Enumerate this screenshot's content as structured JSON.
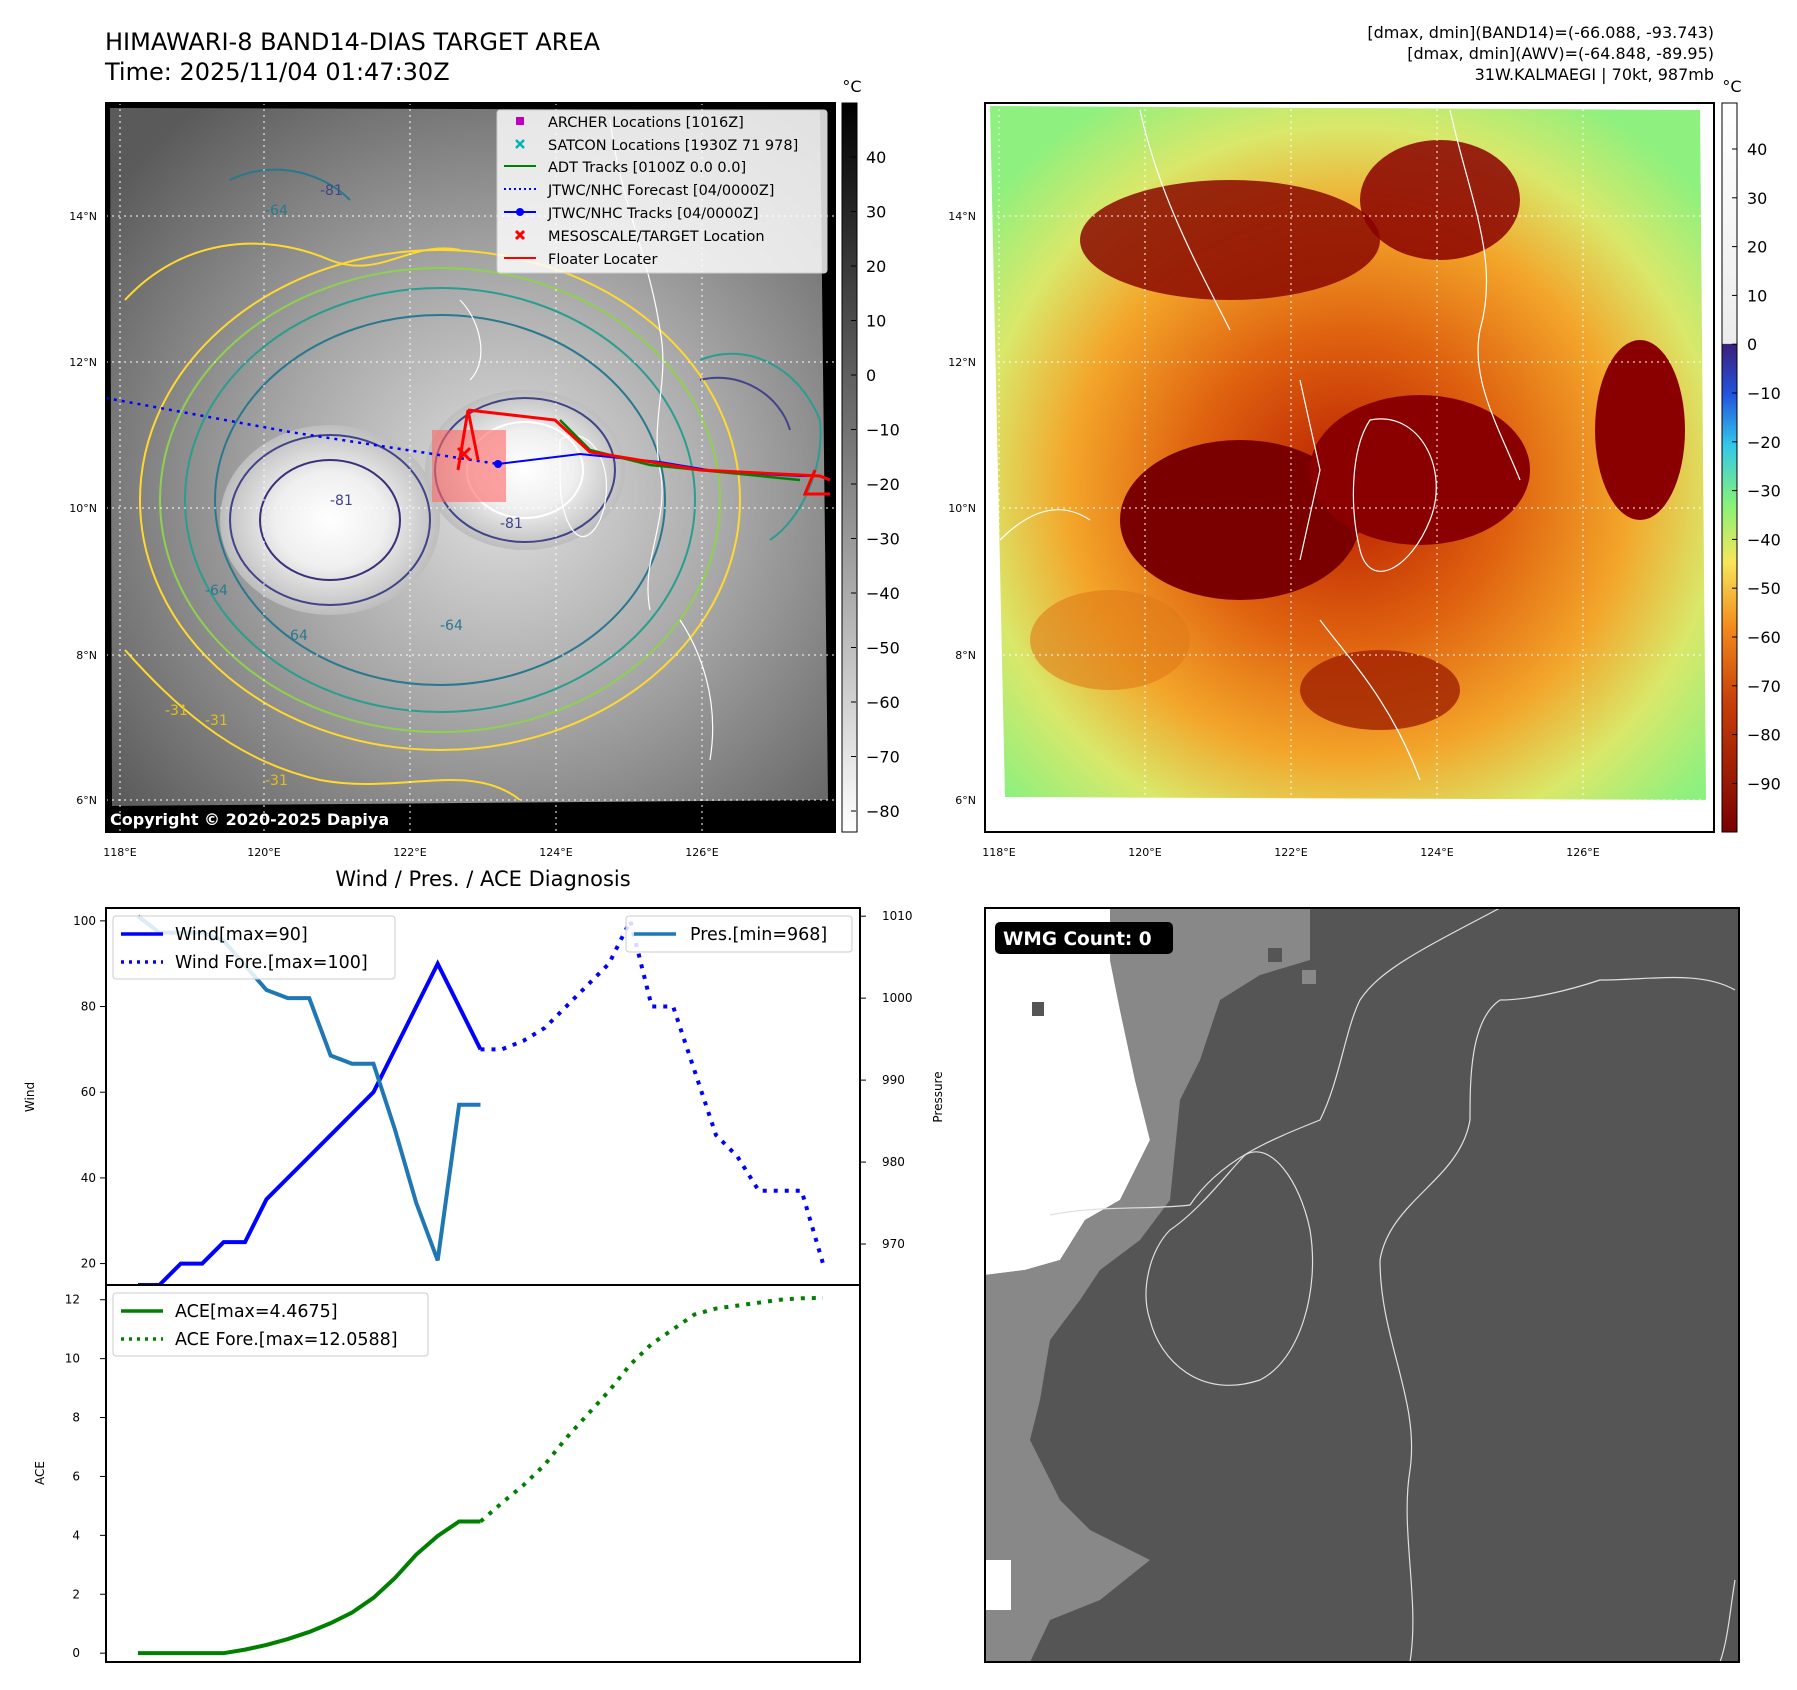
{
  "header": {
    "title_line1": "HIMAWARI-8 BAND14-DIAS TARGET AREA",
    "title_line2": "Time: 2025/11/04 01:47:30Z",
    "info_line1": "[dmax, dmin](BAND14)=(-66.088, -93.743)",
    "info_line2": "[dmax, dmin](AWV)=(-64.848, -89.95)",
    "info_line3": "31W.KALMAEGI | 70kt, 987mb"
  },
  "ir_map": {
    "unit_label": "°C",
    "lat_labels": [
      "14°N",
      "12°N",
      "10°N",
      "8°N",
      "6°N"
    ],
    "lon_labels": [
      "118°E",
      "120°E",
      "122°E",
      "124°E",
      "126°E"
    ],
    "colorbar_ticks": [
      "40",
      "30",
      "20",
      "10",
      "0",
      "−10",
      "−20",
      "−30",
      "−40",
      "−50",
      "−60",
      "−70",
      "−80"
    ],
    "copyright": "Copyright © 2020-2025 Dapiya",
    "contour_labels": [
      "-64",
      "-64",
      "-81",
      "-81",
      "-81",
      "-31",
      "-31",
      "-31",
      "-64",
      "-64"
    ],
    "legend": [
      {
        "label": "ARCHER Locations [1016Z]",
        "color": "#c000c0"
      },
      {
        "label": "SATCON Locations [1930Z 71 978]",
        "color": "#00b4b4"
      },
      {
        "label": "ADT Tracks [0100Z 0.0 0.0]",
        "color": "#008000"
      },
      {
        "label": "JTWC/NHC Forecast [04/0000Z]",
        "color": "#0000ff"
      },
      {
        "label": "JTWC/NHC Tracks [04/0000Z]",
        "color": "#0000ff"
      },
      {
        "label": "MESOSCALE/TARGET Location",
        "color": "#ff0000"
      },
      {
        "label": "Floater Locater",
        "color": "#ff0000"
      }
    ]
  },
  "color_map": {
    "unit_label": "°C",
    "lat_labels": [
      "14°N",
      "12°N",
      "10°N",
      "8°N",
      "6°N"
    ],
    "lon_labels": [
      "118°E",
      "120°E",
      "122°E",
      "124°E",
      "126°E"
    ],
    "colorbar_ticks": [
      "40",
      "30",
      "20",
      "10",
      "0",
      "−10",
      "−20",
      "−30",
      "−40",
      "−50",
      "−60",
      "−70",
      "−80",
      "−90"
    ]
  },
  "wmg_panel": {
    "count_label": "WMG Count: 0"
  },
  "colors": {
    "wind": "#0000ff",
    "pressure": "#1f77b4",
    "ace": "#008000"
  },
  "chart_data": [
    {
      "type": "line",
      "title": "Wind / Pres. / ACE Diagnosis",
      "ylabel": "Wind",
      "ylabel_right": "Pressure",
      "ylim": [
        15,
        103
      ],
      "ylim_right": [
        965,
        1011
      ],
      "yticks": [
        20,
        40,
        60,
        80,
        100
      ],
      "yticks_right": [
        970,
        980,
        990,
        1000,
        1010
      ],
      "x": [
        0,
        1,
        2,
        3,
        4,
        5,
        6,
        7,
        8,
        9,
        10,
        11,
        12,
        13,
        14,
        15,
        16,
        17,
        18,
        19,
        20,
        21,
        22,
        23,
        24,
        25,
        26,
        27,
        28,
        29,
        30,
        31,
        32
      ],
      "series": [
        {
          "name": "Wind[max=90]",
          "style": "solid",
          "axis": "left",
          "x": [
            0,
            1,
            2,
            3,
            4,
            5,
            6,
            7,
            8,
            9,
            10,
            11,
            12,
            13,
            14,
            15,
            16
          ],
          "values": [
            15,
            15,
            20,
            20,
            25,
            25,
            35,
            40,
            45,
            50,
            55,
            60,
            70,
            80,
            90,
            80,
            70
          ]
        },
        {
          "name": "Wind Fore.[max=100]",
          "style": "dotted",
          "axis": "left",
          "x": [
            16,
            17,
            18,
            19,
            20,
            21,
            22,
            23,
            24,
            25,
            26,
            27,
            28,
            29,
            30,
            31,
            32
          ],
          "values": [
            70,
            70,
            72,
            75,
            80,
            85,
            90,
            100,
            80,
            80,
            65,
            50,
            45,
            37,
            37,
            37,
            20
          ]
        },
        {
          "name": "Pres.[min=968]",
          "style": "solid",
          "axis": "right",
          "x": [
            0,
            1,
            2,
            3,
            4,
            5,
            6,
            7,
            8,
            9,
            10,
            11,
            12,
            13,
            14,
            15,
            16
          ],
          "values": [
            1010,
            1008,
            1008,
            1008,
            1007,
            1004,
            1001,
            1000,
            1000,
            993,
            992,
            992,
            984,
            975,
            968,
            987,
            987
          ]
        }
      ]
    },
    {
      "type": "line",
      "ylabel": "ACE",
      "ylim": [
        -0.3,
        12.5
      ],
      "yticks": [
        0,
        2,
        4,
        6,
        8,
        10,
        12
      ],
      "series": [
        {
          "name": "ACE[max=4.4675]",
          "style": "solid",
          "x": [
            0,
            1,
            2,
            3,
            4,
            5,
            6,
            7,
            8,
            9,
            10,
            11,
            12,
            13,
            14,
            15,
            16
          ],
          "values": [
            0,
            0,
            0,
            0,
            0,
            0.12,
            0.28,
            0.48,
            0.72,
            1.02,
            1.38,
            1.88,
            2.55,
            3.35,
            3.98,
            4.47,
            4.47
          ]
        },
        {
          "name": "ACE Fore.[max=12.0588]",
          "style": "dotted",
          "x": [
            16,
            17,
            18,
            19,
            20,
            21,
            22,
            23,
            24,
            25,
            26,
            27,
            28,
            29,
            30,
            31,
            32
          ],
          "values": [
            4.47,
            5.1,
            5.7,
            6.4,
            7.3,
            8.1,
            8.9,
            9.8,
            10.5,
            11.0,
            11.5,
            11.7,
            11.8,
            11.9,
            12.0,
            12.05,
            12.06
          ]
        }
      ]
    }
  ]
}
